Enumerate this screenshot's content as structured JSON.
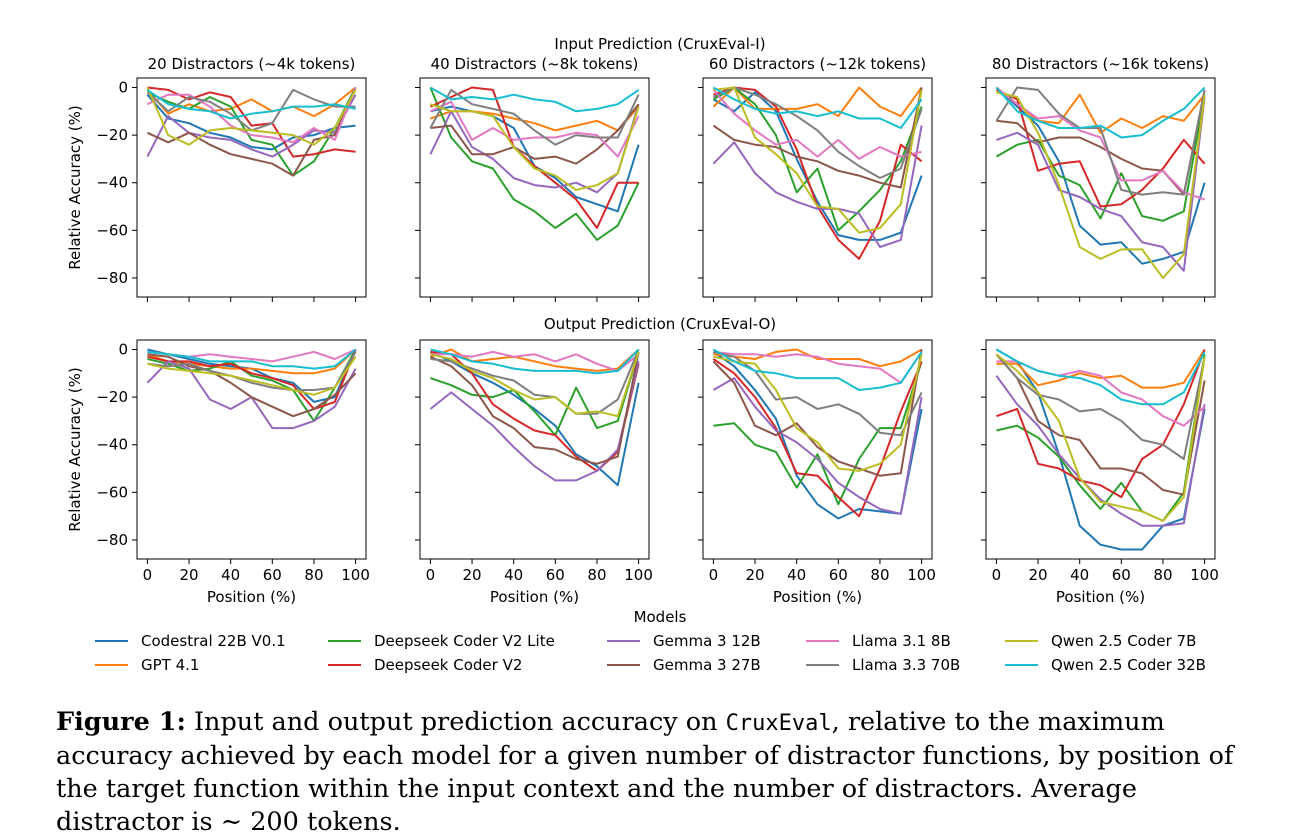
{
  "figure": {
    "row_titles": [
      "Input Prediction (CruxEval-I)",
      "Output Prediction (CruxEval-O)"
    ],
    "panel_titles": [
      "20 Distractors (~4k tokens)",
      "40 Distractors (~8k tokens)",
      "60 Distractors (~12k tokens)",
      "80 Distractors (~16k tokens)"
    ],
    "ylabel": "Relative Accuracy (%)",
    "xlabel": "Position (%)",
    "legend_title": "Models"
  },
  "caption": {
    "label": "Figure 1:",
    "text_before": " Input and output prediction accuracy on ",
    "code": "CruxEval",
    "text_after": ", relative to the maximum accuracy achieved by each model for a given number of distractor functions, by position of the target function within the input context and the number of distractors. Average distractor is ∼ 200 tokens."
  },
  "chart_data": {
    "type": "line",
    "x": [
      0,
      10,
      20,
      30,
      40,
      50,
      60,
      70,
      80,
      90,
      100
    ],
    "xticks": [
      0,
      20,
      40,
      60,
      80,
      100
    ],
    "yticks": [
      0,
      -20,
      -40,
      -60,
      -80
    ],
    "xlim": [
      -5,
      105
    ],
    "ylim": [
      -88,
      4
    ],
    "grid": false,
    "legend_position": "bottom",
    "models": [
      {
        "name": "Codestral 22B V0.1",
        "color": "#1f77b4"
      },
      {
        "name": "GPT 4.1",
        "color": "#ff7f0e"
      },
      {
        "name": "Deepseek Coder V2 Lite",
        "color": "#2ca02c"
      },
      {
        "name": "Deepseek Coder V2",
        "color": "#d62728"
      },
      {
        "name": "Gemma 3 12B",
        "color": "#9467bd"
      },
      {
        "name": "Gemma 3 27B",
        "color": "#8c564b"
      },
      {
        "name": "Llama 3.1 8B",
        "color": "#e377c2"
      },
      {
        "name": "Llama 3.3 70B",
        "color": "#7f7f7f"
      },
      {
        "name": "Qwen 2.5 Coder 7B",
        "color": "#bcbd22"
      },
      {
        "name": "Qwen 2.5 Coder 32B",
        "color": "#17becf"
      }
    ],
    "panels": [
      {
        "row": 0,
        "col": 0,
        "title": "20 Distractors (~4k tokens)",
        "series": [
          [
            -3,
            -13,
            -15,
            -19,
            -21,
            -25,
            -26,
            -21,
            -20,
            -17,
            -16
          ],
          [
            -1,
            -11,
            -7,
            -10,
            -9,
            -5,
            -10,
            -8,
            -12,
            -7,
            0
          ],
          [
            -2,
            -6,
            -9,
            -4,
            -8,
            -22,
            -24,
            -37,
            -31,
            -17,
            0
          ],
          [
            0,
            -1,
            -5,
            -2,
            -4,
            -16,
            -15,
            -29,
            -28,
            -26,
            -27
          ],
          [
            -29,
            -12,
            -19,
            -21,
            -22,
            -26,
            -29,
            -24,
            -18,
            -19,
            -3
          ],
          [
            -19,
            -23,
            -19,
            -24,
            -28,
            -30,
            -32,
            -37,
            -22,
            -20,
            0
          ],
          [
            -7,
            -3,
            -3,
            -8,
            -16,
            -20,
            -21,
            -23,
            -17,
            -22,
            0
          ],
          [
            -2,
            -10,
            -4,
            -6,
            -11,
            -18,
            -15,
            -1,
            -5,
            -8,
            -8
          ],
          [
            0,
            -20,
            -24,
            -18,
            -17,
            -18,
            -19,
            -20,
            -24,
            -17,
            -1
          ],
          [
            -1,
            -7,
            -9,
            -10,
            -13,
            -11,
            -10,
            -8,
            -8,
            -7,
            -9
          ]
        ]
      },
      {
        "row": 0,
        "col": 1,
        "title": "40 Distractors (~8k tokens)",
        "series": [
          [
            -10,
            -8,
            -10,
            -12,
            -17,
            -33,
            -38,
            -46,
            -49,
            -52,
            -24
          ],
          [
            -13,
            -10,
            -10,
            -11,
            -13,
            -15,
            -18,
            -16,
            -14,
            -18,
            -8
          ],
          [
            0,
            -21,
            -31,
            -34,
            -47,
            -52,
            -59,
            -53,
            -64,
            -58,
            -40
          ],
          [
            -8,
            -4,
            0,
            -1,
            -25,
            -33,
            -40,
            -47,
            -59,
            -40,
            -40
          ],
          [
            -28,
            -10,
            -25,
            -30,
            -38,
            -41,
            -42,
            -40,
            -44,
            -36,
            -7
          ],
          [
            -17,
            -16,
            -28,
            -28,
            -25,
            -30,
            -29,
            -32,
            -26,
            -18,
            -7
          ],
          [
            -10,
            -6,
            -22,
            -17,
            -22,
            -21,
            -21,
            -19,
            -20,
            -29,
            -12
          ],
          [
            -17,
            -1,
            -7,
            -9,
            -11,
            -18,
            -24,
            -20,
            -21,
            -21,
            -3
          ],
          [
            -7,
            -10,
            -10,
            -12,
            -25,
            -34,
            -37,
            -43,
            -41,
            -36,
            -8
          ],
          [
            0,
            -5,
            -4,
            -5,
            -3,
            -5,
            -6,
            -10,
            -9,
            -7,
            -1
          ]
        ]
      },
      {
        "row": 0,
        "col": 2,
        "title": "60 Distractors (~12k tokens)",
        "series": [
          [
            -5,
            -10,
            -2,
            -10,
            -30,
            -48,
            -62,
            -64,
            -64,
            -61,
            -37
          ],
          [
            -8,
            0,
            -9,
            -9,
            -9,
            -7,
            -12,
            0,
            -8,
            -12,
            0
          ],
          [
            -5,
            0,
            -7,
            -20,
            -44,
            -34,
            -60,
            -52,
            -43,
            -31,
            -8
          ],
          [
            -3,
            0,
            -1,
            -8,
            -26,
            -50,
            -64,
            -72,
            -56,
            -24,
            -31
          ],
          [
            -32,
            -23,
            -36,
            -44,
            -48,
            -51,
            -51,
            -53,
            -67,
            -64,
            -16
          ],
          [
            -16,
            -22,
            -24,
            -25,
            -29,
            -31,
            -35,
            -37,
            -40,
            -42,
            0
          ],
          [
            -1,
            -11,
            -18,
            -24,
            -22,
            -29,
            -22,
            -30,
            -25,
            -29,
            -27
          ],
          [
            -4,
            0,
            -3,
            -7,
            -12,
            -18,
            -27,
            -33,
            -38,
            -34,
            -9
          ],
          [
            -1,
            0,
            -21,
            -28,
            -36,
            -50,
            -51,
            -61,
            -59,
            -49,
            -1
          ],
          [
            0,
            -5,
            -9,
            -11,
            -10,
            -12,
            -10,
            -13,
            -13,
            -17,
            -5
          ]
        ]
      },
      {
        "row": 0,
        "col": 3,
        "title": "80 Distractors (~16k tokens)",
        "series": [
          [
            0,
            -8,
            -16,
            -31,
            -58,
            -66,
            -65,
            -74,
            -72,
            -69,
            -40
          ],
          [
            0,
            -7,
            -14,
            -15,
            -3,
            -19,
            -13,
            -17,
            -12,
            -14,
            -3
          ],
          [
            -29,
            -24,
            -22,
            -37,
            -41,
            -55,
            -36,
            -54,
            -56,
            -52,
            -3
          ],
          [
            -1,
            -5,
            -35,
            -32,
            -31,
            -50,
            -49,
            -43,
            -34,
            -22,
            -32
          ],
          [
            -22,
            -19,
            -24,
            -43,
            -46,
            -51,
            -54,
            -65,
            -67,
            -77,
            -4
          ],
          [
            -14,
            -15,
            -23,
            -21,
            -21,
            -25,
            -30,
            -34,
            -35,
            -45,
            -1
          ],
          [
            0,
            -7,
            -13,
            -12,
            -18,
            -21,
            -39,
            -39,
            -35,
            -44,
            -47
          ],
          [
            -14,
            0,
            -1,
            -11,
            -17,
            -17,
            -43,
            -45,
            -44,
            -45,
            -1
          ],
          [
            -2,
            -4,
            -19,
            -41,
            -67,
            -72,
            -68,
            -68,
            -80,
            -70,
            -3
          ],
          [
            0,
            -10,
            -14,
            -17,
            -17,
            -16,
            -21,
            -20,
            -14,
            -9,
            0
          ]
        ]
      },
      {
        "row": 1,
        "col": 0,
        "title": "",
        "series": [
          [
            0,
            -2,
            -4,
            -6,
            -7,
            -8,
            -12,
            -14,
            -22,
            -20,
            0
          ],
          [
            -2,
            -5,
            -6,
            -7,
            -8,
            -8,
            -9,
            -10,
            -10,
            -8,
            0
          ],
          [
            -4,
            -6,
            -9,
            -8,
            -5,
            -11,
            -13,
            -17,
            -30,
            -16,
            0
          ],
          [
            -3,
            -5,
            -5,
            -7,
            -6,
            -10,
            -12,
            -15,
            -25,
            -22,
            0
          ],
          [
            -14,
            -5,
            -8,
            -21,
            -25,
            -20,
            -33,
            -33,
            -30,
            -24,
            -8
          ],
          [
            -2,
            -3,
            -7,
            -9,
            -14,
            -20,
            -24,
            -28,
            -25,
            -19,
            -10
          ],
          [
            -1,
            -2,
            -3,
            -2,
            -3,
            -4,
            -5,
            -3,
            -1,
            -4,
            0
          ],
          [
            -6,
            -7,
            -6,
            -9,
            -11,
            -14,
            -16,
            -17,
            -17,
            -16,
            -1
          ],
          [
            -6,
            -8,
            -9,
            -10,
            -11,
            -13,
            -15,
            -17,
            -19,
            -16,
            -3
          ],
          [
            -1,
            -2,
            -3,
            -5,
            -5,
            -5,
            -7,
            -7,
            -8,
            -7,
            0
          ]
        ]
      },
      {
        "row": 1,
        "col": 1,
        "title": "",
        "series": [
          [
            -1,
            -5,
            -10,
            -14,
            -19,
            -25,
            -32,
            -44,
            -49,
            -57,
            -14
          ],
          [
            -3,
            0,
            -5,
            -4,
            -3,
            -5,
            -7,
            -8,
            -9,
            -8,
            0
          ],
          [
            -12,
            -15,
            -19,
            -20,
            -17,
            -26,
            -36,
            -16,
            -33,
            -30,
            -1
          ],
          [
            -1,
            -2,
            -10,
            -23,
            -29,
            -34,
            -36,
            -45,
            -51,
            -43,
            -6
          ],
          [
            -25,
            -18,
            -25,
            -32,
            -41,
            -49,
            -55,
            -55,
            -51,
            -42,
            -5
          ],
          [
            -3,
            -7,
            -15,
            -28,
            -33,
            -41,
            -42,
            -46,
            -48,
            -45,
            -1
          ],
          [
            -2,
            -2,
            -3,
            -1,
            -3,
            -2,
            -5,
            -2,
            -6,
            -9,
            -2
          ],
          [
            -4,
            -5,
            -8,
            -11,
            -13,
            -19,
            -20,
            -27,
            -27,
            -21,
            0
          ],
          [
            -2,
            -4,
            -9,
            -12,
            -17,
            -21,
            -20,
            -27,
            -26,
            -28,
            -1
          ],
          [
            0,
            -2,
            -5,
            -6,
            -8,
            -9,
            -9,
            -9,
            -10,
            -9,
            0
          ]
        ]
      },
      {
        "row": 1,
        "col": 2,
        "title": "",
        "series": [
          [
            -1,
            -7,
            -17,
            -29,
            -53,
            -65,
            -71,
            -67,
            -68,
            -69,
            -25
          ],
          [
            -2,
            -3,
            -4,
            -1,
            0,
            -4,
            -4,
            -4,
            -7,
            -5,
            0
          ],
          [
            -32,
            -31,
            -40,
            -43,
            -58,
            -44,
            -65,
            -46,
            -33,
            -33,
            -5
          ],
          [
            -4,
            -10,
            -20,
            -33,
            -52,
            -53,
            -62,
            -70,
            -50,
            -26,
            -5
          ],
          [
            -17,
            -12,
            -24,
            -34,
            -39,
            -46,
            -56,
            -62,
            -67,
            -69,
            -20
          ],
          [
            -5,
            -14,
            -32,
            -36,
            -31,
            -41,
            -47,
            -50,
            -53,
            -52,
            0
          ],
          [
            -1,
            -2,
            -2,
            -3,
            -2,
            -3,
            -6,
            -7,
            -8,
            -14,
            -1
          ],
          [
            -1,
            -3,
            -9,
            -21,
            -20,
            -25,
            -23,
            -27,
            -35,
            -36,
            -18
          ],
          [
            -3,
            -5,
            -6,
            -17,
            -33,
            -39,
            -50,
            -51,
            -48,
            -40,
            -2
          ],
          [
            0,
            -5,
            -9,
            -10,
            -12,
            -12,
            -12,
            -17,
            -16,
            -14,
            -1
          ]
        ]
      },
      {
        "row": 1,
        "col": 3,
        "title": "",
        "series": [
          [
            0,
            -5,
            -18,
            -44,
            -74,
            -82,
            -84,
            -84,
            -74,
            -71,
            -25
          ],
          [
            -6,
            -6,
            -15,
            -13,
            -10,
            -12,
            -11,
            -16,
            -16,
            -14,
            0
          ],
          [
            -34,
            -32,
            -37,
            -45,
            -57,
            -67,
            -56,
            -68,
            -72,
            -60,
            -2
          ],
          [
            -28,
            -25,
            -48,
            -50,
            -55,
            -57,
            -62,
            -46,
            -40,
            -23,
            0
          ],
          [
            -11,
            -23,
            -32,
            -44,
            -54,
            -63,
            -69,
            -74,
            -74,
            -73,
            -23
          ],
          [
            -2,
            -12,
            -30,
            -36,
            -38,
            -50,
            -50,
            -52,
            -59,
            -61,
            -13
          ],
          [
            -5,
            -5,
            -9,
            -11,
            -9,
            -11,
            -18,
            -21,
            -28,
            -32,
            -24
          ],
          [
            -2,
            -12,
            -19,
            -21,
            -26,
            -25,
            -30,
            -38,
            -40,
            -46,
            -3
          ],
          [
            -2,
            -9,
            -18,
            -30,
            -54,
            -64,
            -66,
            -68,
            -72,
            -62,
            -3
          ],
          [
            0,
            -5,
            -9,
            -11,
            -12,
            -15,
            -21,
            -23,
            -23,
            -18,
            -1
          ]
        ]
      }
    ]
  }
}
